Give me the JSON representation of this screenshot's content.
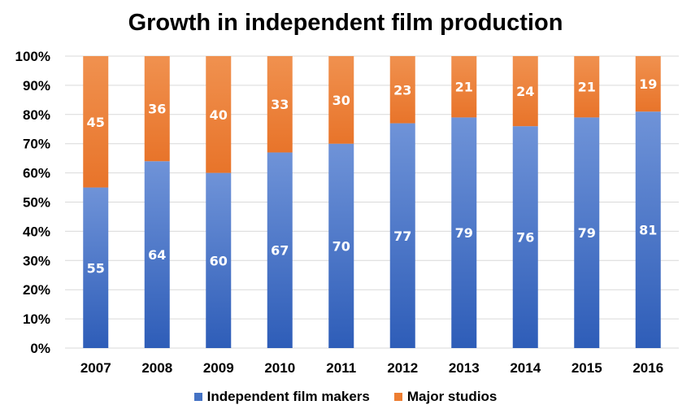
{
  "chart_data": {
    "type": "bar",
    "stacked": true,
    "title": "Growth in independent film production",
    "xlabel": "",
    "ylabel": "",
    "categories": [
      "2007",
      "2008",
      "2009",
      "2010",
      "2011",
      "2012",
      "2013",
      "2014",
      "2015",
      "2016"
    ],
    "series": [
      {
        "name": "Independent film makers",
        "color": "#4472c4",
        "values": [
          55,
          64,
          60,
          67,
          70,
          77,
          79,
          76,
          79,
          81
        ]
      },
      {
        "name": "Major studios",
        "color": "#ed7d31",
        "values": [
          45,
          36,
          40,
          33,
          30,
          23,
          21,
          24,
          21,
          19
        ]
      }
    ],
    "ylim": [
      0,
      100
    ],
    "yticks": [
      "0%",
      "10%",
      "20%",
      "30%",
      "40%",
      "50%",
      "60%",
      "70%",
      "80%",
      "90%",
      "100%"
    ],
    "grid": true,
    "legend_position": "bottom"
  }
}
